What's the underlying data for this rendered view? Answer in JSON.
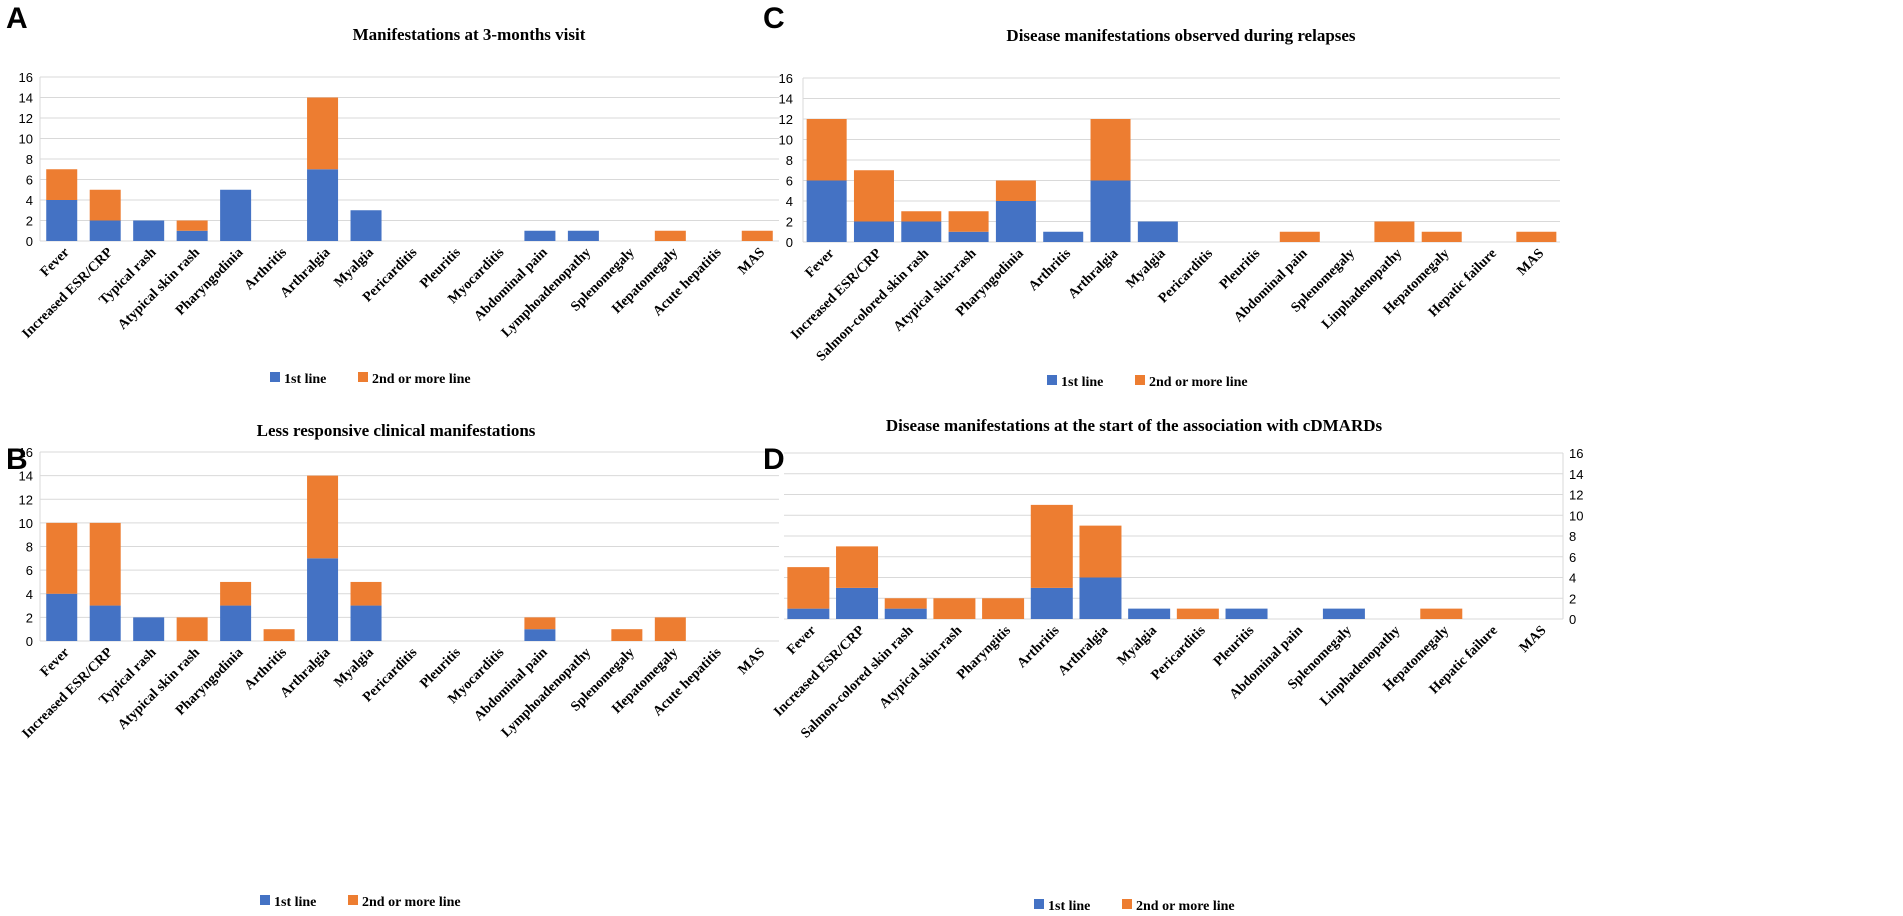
{
  "colors": {
    "first_line": "#4472C4",
    "second_line": "#ED7D31",
    "axis": "#D9D9D9",
    "text": "#000000"
  },
  "chart_data": [
    {
      "panel_label": "A",
      "type": "bar",
      "stacked": true,
      "title": "Manifestations at 3-months visit",
      "categories": [
        "Fever",
        "Increased ESR/CRP",
        "Typical rash",
        "Atypical skin rash",
        "Pharyngodinia",
        "Arthritis",
        "Arthralgia",
        "Myalgia",
        "Pericarditis",
        "Pleuritis",
        "Myocarditis",
        "Abdominal pain",
        "Lymphoadenopathy",
        "Splenomegaly",
        "Hepatomegaly",
        "Acute hepatitis",
        "MAS"
      ],
      "series": [
        {
          "name": "1st line",
          "values": [
            4,
            2,
            2,
            1,
            5,
            0,
            7,
            3,
            0,
            0,
            0,
            1,
            1,
            0,
            0,
            0,
            0
          ]
        },
        {
          "name": "2nd or more line",
          "values": [
            3,
            3,
            0,
            1,
            0,
            0,
            7,
            0,
            0,
            0,
            0,
            0,
            0,
            0,
            1,
            0,
            1
          ]
        }
      ],
      "ylim": [
        0,
        16
      ],
      "yticks": [
        0,
        2,
        4,
        6,
        8,
        10,
        12,
        14,
        16
      ],
      "xlabel": "",
      "ylabel": "",
      "legend": "bottom"
    },
    {
      "panel_label": "B",
      "type": "bar",
      "stacked": true,
      "title": "Less responsive clinical manifestations",
      "categories": [
        "Fever",
        "Increased ESR/CRP",
        "Typical rash",
        "Atypical skin rash",
        "Pharyngodinia",
        "Arthritis",
        "Arthralgia",
        "Myalgia",
        "Pericarditis",
        "Pleuritis",
        "Myocarditis",
        "Abdominal pain",
        "Lymphoadenopathy",
        "Splenomegaly",
        "Hepatomegaly",
        "Acute hepatitis",
        "MAS"
      ],
      "series": [
        {
          "name": "1st line",
          "values": [
            4,
            3,
            2,
            0,
            3,
            0,
            7,
            3,
            0,
            0,
            0,
            1,
            0,
            0,
            0,
            0,
            0
          ]
        },
        {
          "name": "2nd or more line",
          "values": [
            6,
            7,
            0,
            2,
            2,
            1,
            7,
            2,
            0,
            0,
            0,
            1,
            0,
            1,
            2,
            0,
            0
          ]
        }
      ],
      "ylim": [
        0,
        16
      ],
      "yticks": [
        0,
        2,
        4,
        6,
        8,
        10,
        12,
        14,
        16
      ],
      "xlabel": "",
      "ylabel": "",
      "legend": "bottom"
    },
    {
      "panel_label": "C",
      "type": "bar",
      "stacked": true,
      "title": "Disease manifestations observed during  relapses",
      "categories": [
        "Fever",
        "Increased ESR/CRP",
        "Salmon-colored skin rash",
        "Atypical skin-rash",
        "Pharyngodinia",
        "Arthritis",
        "Arthralgia",
        "Myalgia",
        "Pericarditis",
        "Pleuritis",
        "Abdominal pain",
        "Splenomegaly",
        "Linphadenopathy",
        "Hepatomegaly",
        "Hepatic failure",
        "MAS"
      ],
      "series": [
        {
          "name": "1st line",
          "values": [
            6,
            2,
            2,
            1,
            4,
            1,
            6,
            2,
            0,
            0,
            0,
            0,
            0,
            0,
            0,
            0
          ]
        },
        {
          "name": "2nd or more line",
          "values": [
            6,
            5,
            1,
            2,
            2,
            0,
            6,
            0,
            0,
            0,
            1,
            0,
            2,
            1,
            0,
            1
          ]
        }
      ],
      "ylim": [
        0,
        16
      ],
      "yticks": [
        0,
        2,
        4,
        6,
        8,
        10,
        12,
        14,
        16
      ],
      "xlabel": "",
      "ylabel": "",
      "legend": "bottom"
    },
    {
      "panel_label": "D",
      "type": "bar",
      "stacked": true,
      "title": "Disease manifestations at the start of the association with cDMARDs",
      "categories": [
        "Fever",
        "Increased ESR/CRP",
        "Salmon-colored skin rash",
        "Atypical skin-rash",
        "Pharyngitis",
        "Arthritis",
        "Arthralgia",
        "Myalgia",
        "Pericarditis",
        "Pleuritis",
        "Abdominal pain",
        "Splenomegaly",
        "Linphadenopathy",
        "Hepatomegaly",
        "Hepatic failure",
        "MAS"
      ],
      "series": [
        {
          "name": "1st line",
          "values": [
            1,
            3,
            1,
            0,
            0,
            3,
            4,
            1,
            0,
            1,
            0,
            1,
            0,
            0,
            0,
            0
          ]
        },
        {
          "name": "2nd or more line",
          "values": [
            4,
            4,
            1,
            2,
            2,
            8,
            5,
            0,
            1,
            0,
            0,
            0,
            0,
            1,
            0,
            0
          ]
        }
      ],
      "ylim": [
        0,
        16
      ],
      "yticks": [
        0,
        2,
        4,
        6,
        8,
        10,
        12,
        14,
        16
      ],
      "xlabel": "",
      "ylabel": "",
      "legend": "bottom"
    }
  ]
}
